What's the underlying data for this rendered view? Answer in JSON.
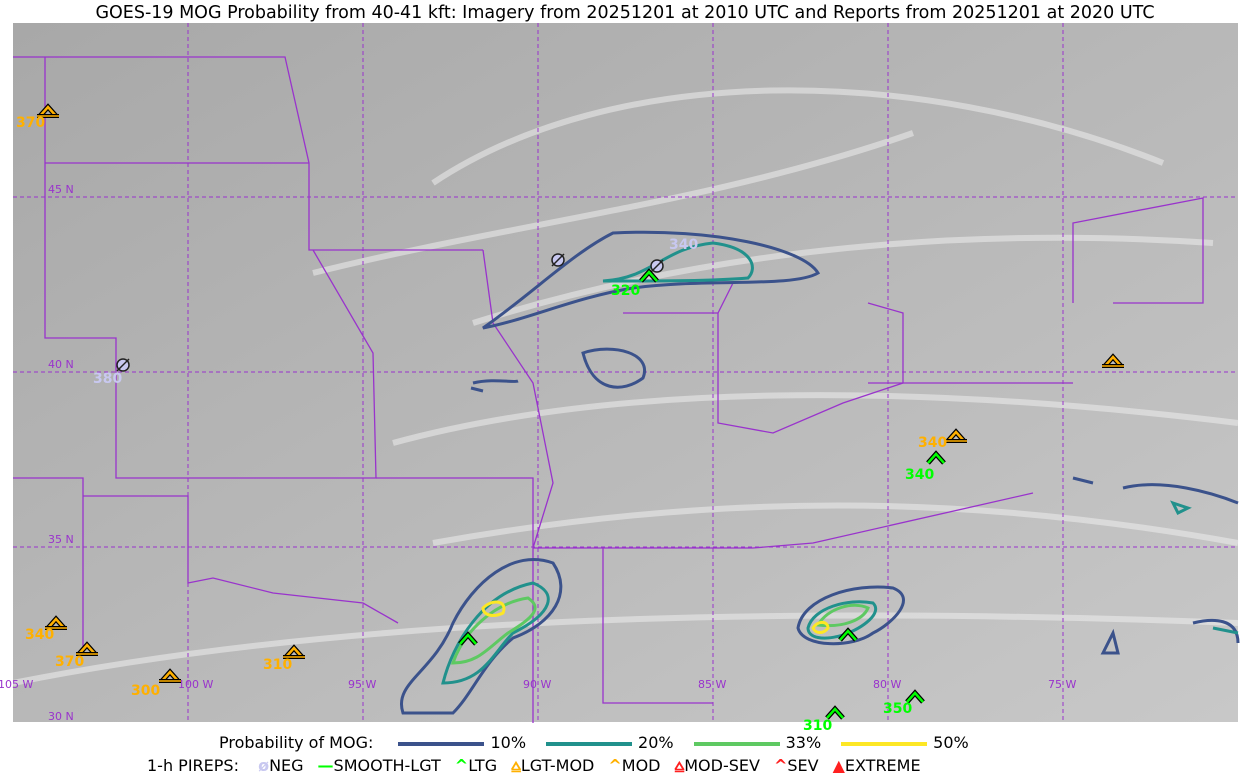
{
  "title": "GOES-19 MOG Probability from 40-41 kft: Imagery from 20251201 at 2010 UTC and Reports from 20251201 at 2020 UTC",
  "map": {
    "grid_color": "#9933cc",
    "lat_labels": [
      "45 N",
      "40 N",
      "35 N",
      "30 N"
    ],
    "lon_labels": [
      "105 W",
      "100 W",
      "95 W",
      "90 W",
      "85 W",
      "80 W",
      "75 W"
    ],
    "pireps": [
      {
        "type": "LGT-MOD",
        "alt": "370",
        "color": "#ffb000"
      },
      {
        "type": "NEG",
        "alt": "380",
        "color": "#c8c8f0"
      },
      {
        "type": "NEG",
        "alt": "",
        "color": "#c8c8f0"
      },
      {
        "type": "NEG",
        "alt": "340",
        "color": "#c8c8f0"
      },
      {
        "type": "LTG",
        "alt": "320",
        "color": "#00ff00"
      },
      {
        "type": "LGT-MOD",
        "alt": "340",
        "color": "#ffb000"
      },
      {
        "type": "LTG",
        "alt": "340",
        "color": "#00ff00"
      },
      {
        "type": "LGT-MOD",
        "alt": "",
        "color": "#ffb000"
      },
      {
        "type": "LGT-MOD",
        "alt": "340",
        "color": "#ffb000"
      },
      {
        "type": "LGT-MOD",
        "alt": "370",
        "color": "#ffb000"
      },
      {
        "type": "LGT-MOD",
        "alt": "300",
        "color": "#ffb000"
      },
      {
        "type": "LGT-MOD",
        "alt": "310",
        "color": "#ffb000"
      },
      {
        "type": "LTG",
        "alt": "",
        "color": "#00ff00"
      },
      {
        "type": "LTG",
        "alt": "",
        "color": "#00ff00"
      },
      {
        "type": "LTG",
        "alt": "310",
        "color": "#00ff00"
      },
      {
        "type": "LTG",
        "alt": "350",
        "color": "#00ff00"
      }
    ]
  },
  "legend": {
    "prob_label": "Probability of MOG:",
    "prob": [
      {
        "label": "10%",
        "color": "#3b528b"
      },
      {
        "label": "20%",
        "color": "#21918c"
      },
      {
        "label": "33%",
        "color": "#5ec962"
      },
      {
        "label": "50%",
        "color": "#fde725"
      }
    ],
    "pirep_label": "1-h PIREPS:",
    "pireps": [
      {
        "label": "NEG",
        "color": "#c8c8f0",
        "icon": "neg-icon"
      },
      {
        "label": "SMOOTH-LGT",
        "color": "#00ff00",
        "icon": "line-icon"
      },
      {
        "label": "LTG",
        "color": "#00ff00",
        "icon": "caret-icon"
      },
      {
        "label": "LGT-MOD",
        "color": "#ffb000",
        "icon": "caret-bar-icon"
      },
      {
        "label": "MOD",
        "color": "#ffb000",
        "icon": "caret-icon"
      },
      {
        "label": "MOD-SEV",
        "color": "#ff2020",
        "icon": "double-caret-bar-icon"
      },
      {
        "label": "SEV",
        "color": "#ff2020",
        "icon": "double-caret-icon"
      },
      {
        "label": "EXTREME",
        "color": "#ff2020",
        "icon": "filled-triangle-icon"
      }
    ]
  }
}
